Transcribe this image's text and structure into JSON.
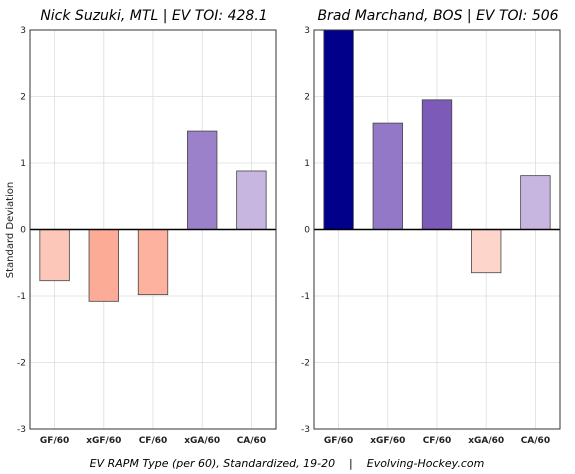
{
  "chart_data": [
    {
      "type": "bar",
      "title": "Nick Suzuki, MTL  |  EV TOI: 428.1",
      "ylabel": "Standard Deviation",
      "xlabel": "",
      "categories": [
        "GF/60",
        "xGF/60",
        "CF/60",
        "xGA/60",
        "CA/60"
      ],
      "values": [
        -0.77,
        -1.08,
        -0.98,
        1.48,
        0.88
      ],
      "colors": [
        "#fcc6b8",
        "#fcab96",
        "#fcb29f",
        "#9b81c9",
        "#c7b6e0"
      ],
      "ylim": [
        -3,
        3
      ],
      "yticks": [
        "-3",
        "-2",
        "-1",
        "0",
        "1",
        "2",
        "3"
      ],
      "grid": true
    },
    {
      "type": "bar",
      "title": "Brad Marchand, BOS  |  EV TOI: 506",
      "ylabel": "",
      "xlabel": "",
      "categories": [
        "GF/60",
        "xGF/60",
        "CF/60",
        "xGA/60",
        "CA/60"
      ],
      "values": [
        3.0,
        1.6,
        1.95,
        -0.65,
        0.81
      ],
      "colors": [
        "#00008b",
        "#9278c6",
        "#7b5ab8",
        "#fdd5cb",
        "#c7b6e0"
      ],
      "ylim": [
        -3,
        3
      ],
      "yticks": [
        "-3",
        "-2",
        "-1",
        "0",
        "1",
        "2",
        "3"
      ],
      "grid": true
    }
  ],
  "caption": "EV RAPM Type (per 60), Standardized, 19-20    |    Evolving-Hockey.com"
}
